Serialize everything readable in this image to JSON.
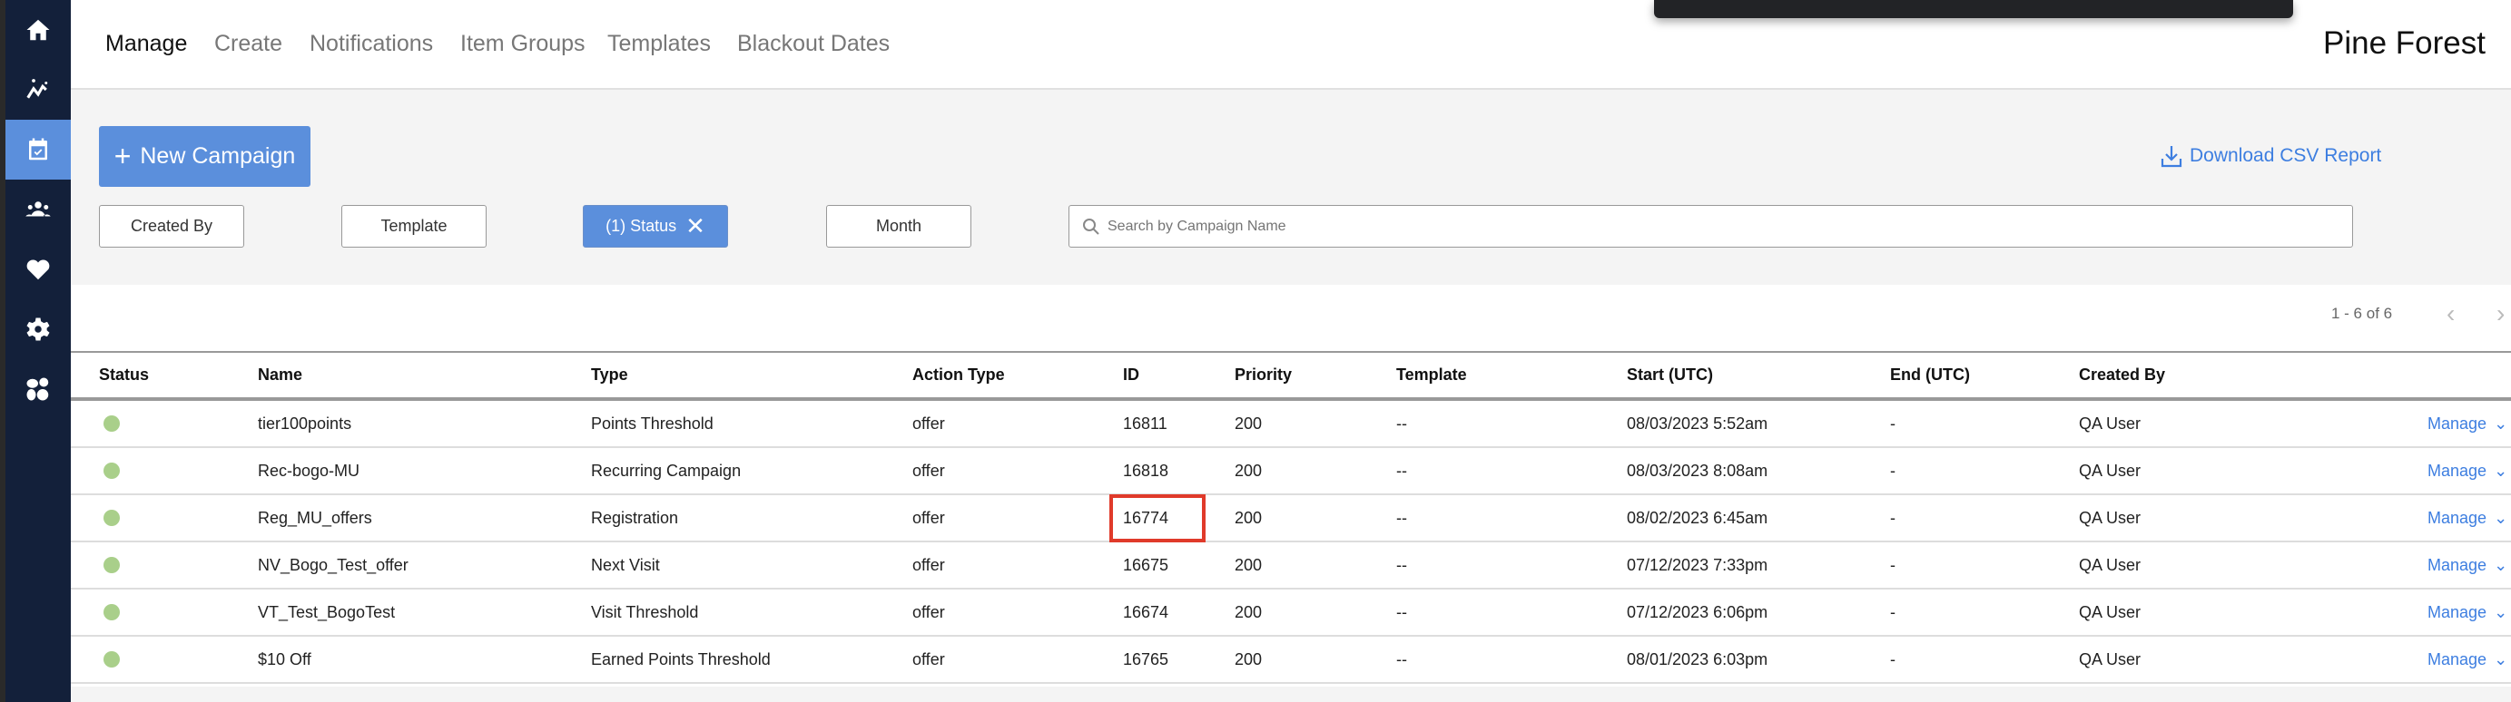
{
  "sidebar": {
    "items": [
      {
        "icon": "home-icon"
      },
      {
        "icon": "analytics-icon"
      },
      {
        "icon": "calendar-check-icon",
        "active": true
      },
      {
        "icon": "users-icon"
      },
      {
        "icon": "heart-icon"
      },
      {
        "icon": "gear-icon"
      },
      {
        "icon": "brand-logo-icon"
      }
    ]
  },
  "nav": {
    "tabs": [
      {
        "label": "Manage",
        "active": true
      },
      {
        "label": "Create"
      },
      {
        "label": "Notifications"
      },
      {
        "label": "Item Groups"
      },
      {
        "label": "Templates"
      },
      {
        "label": "Blackout Dates"
      }
    ],
    "brand": "Pine Forest"
  },
  "toolbar": {
    "new_campaign": "New Campaign",
    "download_csv": "Download CSV Report",
    "filters": [
      {
        "label": "Created By"
      },
      {
        "label": "Template"
      },
      {
        "label": "(1) Status",
        "active": true
      },
      {
        "label": "Month"
      }
    ],
    "search_placeholder": "Search by Campaign Name"
  },
  "pagination": {
    "text": "1 - 6 of 6"
  },
  "table": {
    "headers": [
      "Status",
      "Name",
      "Type",
      "Action Type",
      "ID",
      "Priority",
      "Template",
      "Start (UTC)",
      "End (UTC)",
      "Created By"
    ],
    "rows": [
      {
        "name": "tier100points",
        "type": "Points Threshold",
        "action": "offer",
        "id": "16811",
        "priority": "200",
        "template": "--",
        "start": "08/03/2023 5:52am",
        "end": "-",
        "created_by": "QA User",
        "manage": "Manage"
      },
      {
        "name": "Rec-bogo-MU",
        "type": "Recurring Campaign",
        "action": "offer",
        "id": "16818",
        "priority": "200",
        "template": "--",
        "start": "08/03/2023 8:08am",
        "end": "-",
        "created_by": "QA User",
        "manage": "Manage"
      },
      {
        "name": "Reg_MU_offers",
        "type": "Registration",
        "action": "offer",
        "id": "16774",
        "priority": "200",
        "template": "--",
        "start": "08/02/2023 6:45am",
        "end": "-",
        "created_by": "QA User",
        "manage": "Manage"
      },
      {
        "name": "NV_Bogo_Test_offer",
        "type": "Next Visit",
        "action": "offer",
        "id": "16675",
        "priority": "200",
        "template": "--",
        "start": "07/12/2023 7:33pm",
        "end": "-",
        "created_by": "QA User",
        "manage": "Manage"
      },
      {
        "name": "VT_Test_BogoTest",
        "type": "Visit Threshold",
        "action": "offer",
        "id": "16674",
        "priority": "200",
        "template": "--",
        "start": "07/12/2023 6:06pm",
        "end": "-",
        "created_by": "QA User",
        "manage": "Manage"
      },
      {
        "name": "$10 Off",
        "type": "Earned Points Threshold",
        "action": "offer",
        "id": "16765",
        "priority": "200",
        "template": "--",
        "start": "08/01/2023 6:03pm",
        "end": "-",
        "created_by": "QA User",
        "manage": "Manage"
      }
    ]
  },
  "colors": {
    "accent": "#5b8fdc",
    "sidebar": "#13203a",
    "link": "#3d7ee0",
    "status_active": "#a9cf8a",
    "highlight": "#e03a2a"
  }
}
